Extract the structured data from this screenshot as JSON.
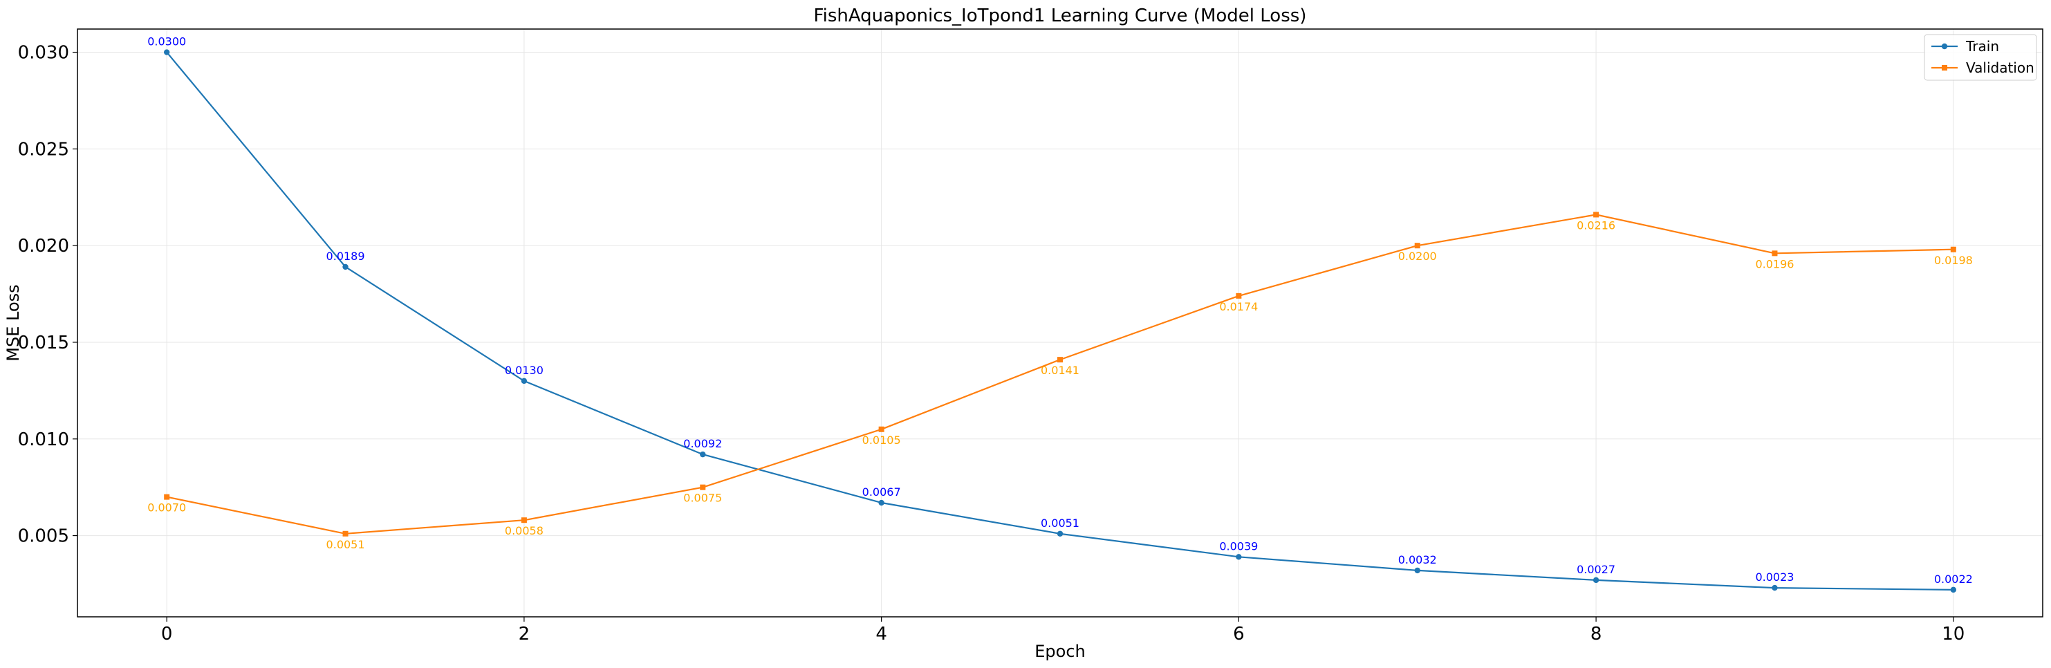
{
  "chart_data": {
    "type": "line",
    "title": "FishAquaponics_IoTpond1 Learning Curve (Model Loss)",
    "xlabel": "Epoch",
    "ylabel": "MSE Loss",
    "x": [
      0,
      1,
      2,
      3,
      4,
      5,
      6,
      7,
      8,
      9,
      10
    ],
    "xlim": [
      -0.5,
      10.5
    ],
    "ylim": [
      0.0008,
      0.0312
    ],
    "xticks": [
      0,
      2,
      4,
      6,
      8,
      10
    ],
    "yticks": [
      0.005,
      0.01,
      0.015,
      0.02,
      0.025,
      0.03
    ],
    "xtick_labels": [
      "0",
      "2",
      "4",
      "6",
      "8",
      "10"
    ],
    "ytick_labels": [
      "0.005",
      "0.010",
      "0.015",
      "0.020",
      "0.025",
      "0.030"
    ],
    "grid": true,
    "legend_position": "top-right",
    "series": [
      {
        "name": "Train",
        "color": "#1f77b4",
        "label_color": "#0000ff",
        "label_position": "above",
        "marker": "circle",
        "values": [
          0.03,
          0.0189,
          0.013,
          0.0092,
          0.0067,
          0.0051,
          0.0039,
          0.0032,
          0.0027,
          0.0023,
          0.0022
        ],
        "labels": [
          "0.0300",
          "0.0189",
          "0.0130",
          "0.0092",
          "0.0067",
          "0.0051",
          "0.0039",
          "0.0032",
          "0.0027",
          "0.0023",
          "0.0022"
        ]
      },
      {
        "name": "Validation",
        "color": "#ff7f0e",
        "label_color": "#ffa500",
        "label_position": "below",
        "marker": "square",
        "values": [
          0.007,
          0.0051,
          0.0058,
          0.0075,
          0.0105,
          0.0141,
          0.0174,
          0.02,
          0.0216,
          0.0196,
          0.0198
        ],
        "labels": [
          "0.0070",
          "0.0051",
          "0.0058",
          "0.0075",
          "0.0105",
          "0.0141",
          "0.0174",
          "0.0200",
          "0.0216",
          "0.0196",
          "0.0198"
        ]
      }
    ]
  }
}
